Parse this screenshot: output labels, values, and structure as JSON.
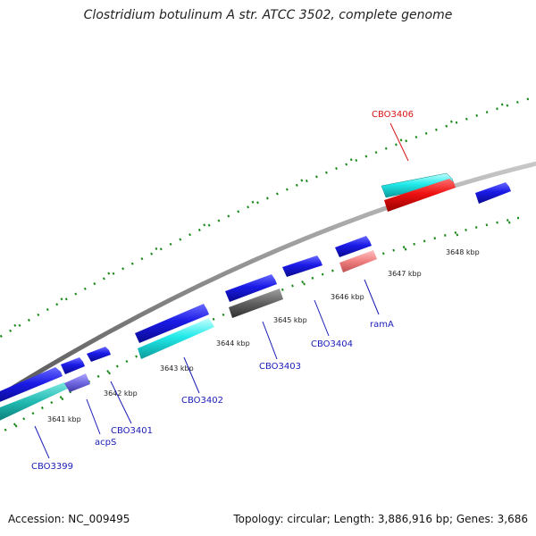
{
  "title": "Clostridium botulinum A str. ATCC 3502, complete genome",
  "footer": {
    "accession": "Accession: NC_009495",
    "summary": "Topology: circular; Length: 3,886,916 bp; Genes: 3,686"
  },
  "scale_labels": [
    "3641 kbp",
    "3642 kbp",
    "3643 kbp",
    "3644 kbp",
    "3645 kbp",
    "3646 kbp",
    "3647 kbp",
    "3648 kbp"
  ],
  "gene_labels": {
    "cbo3399": "CBO3399",
    "acps": "acpS",
    "cbo3401": "CBO3401",
    "cbo3402": "CBO3402",
    "cbo3403": "CBO3403",
    "cbo3404": "CBO3404",
    "rama": "ramA",
    "cbo3406": "CBO3406"
  },
  "colors": {
    "backbone": "#8c8c8c",
    "cds": "#1414dc",
    "rna": "#1ee6e6",
    "highlight": "#ee1111",
    "tick": "#1b8a1b",
    "label": "#1a1ab8",
    "highlight_label": "#d81414"
  }
}
